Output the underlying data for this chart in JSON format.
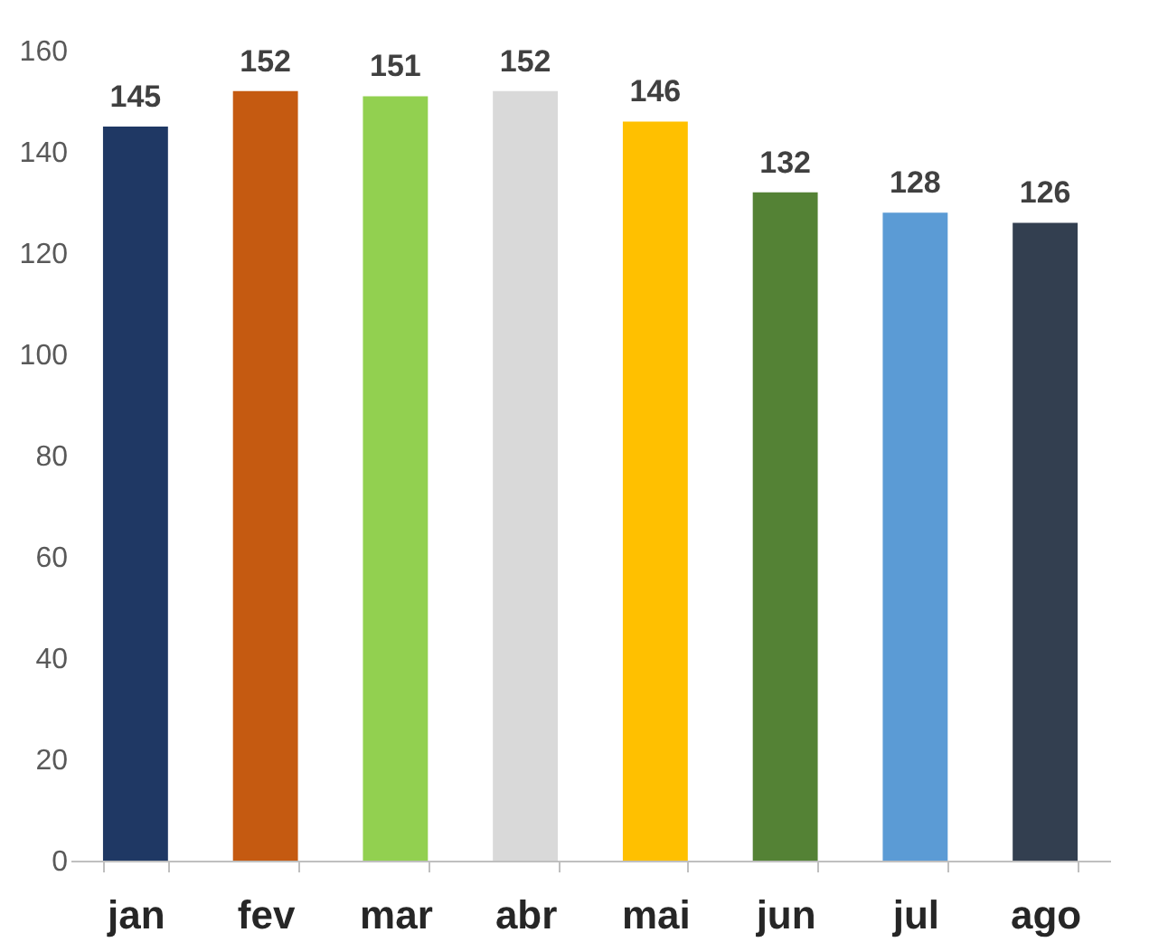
{
  "chart_data": {
    "type": "bar",
    "categories": [
      "jan",
      "fev",
      "mar",
      "abr",
      "mai",
      "jun",
      "jul",
      "ago"
    ],
    "values": [
      145,
      152,
      151,
      152,
      146,
      132,
      128,
      126
    ],
    "colors": [
      "#1f3864",
      "#c55a11",
      "#92d050",
      "#d9d9d9",
      "#ffc000",
      "#548235",
      "#5b9bd5",
      "#333f50"
    ],
    "ylim": [
      0,
      160
    ],
    "yticks": [
      0,
      20,
      40,
      60,
      80,
      100,
      120,
      140,
      160
    ],
    "grid": false,
    "data_labels": true
  }
}
